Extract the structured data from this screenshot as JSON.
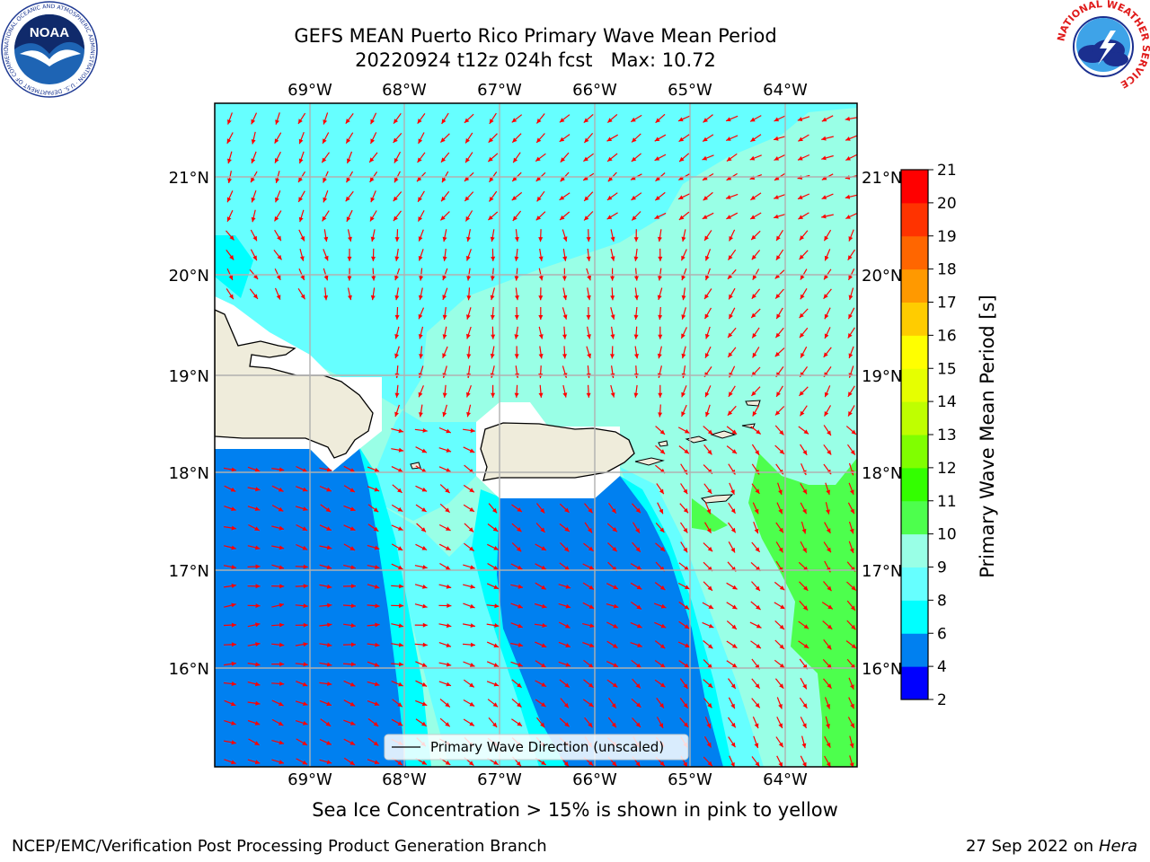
{
  "header": {
    "title_line1": "GEFS MEAN Puerto Rico Primary Wave Mean Period",
    "title_line2": "20220924 t12z 024h fcst   Max: 10.72"
  },
  "map": {
    "lon_labels": [
      "69°W",
      "68°W",
      "67°W",
      "66°W",
      "65°W",
      "64°W"
    ],
    "lat_labels": [
      "21°N",
      "20°N",
      "19°N",
      "18°N",
      "17°N",
      "16°N"
    ],
    "legend_label": "Primary Wave Direction (unscaled)",
    "colors": {
      "land": "#efecdb",
      "band_2_4": "#0000ff",
      "band_4_6": "#0080f0",
      "band_6_8": "#00ffff",
      "band_8_9": "#66ffff",
      "band_9_10": "#99ffe6",
      "band_10_11": "#4dff4d",
      "arrow": "#ff0000",
      "grid": "#b0b0b0"
    }
  },
  "colorbar": {
    "label": "Primary Wave Mean Period [s]",
    "ticks": [
      "2",
      "4",
      "6",
      "8",
      "9",
      "10",
      "11",
      "12",
      "13",
      "14",
      "15",
      "16",
      "17",
      "18",
      "19",
      "20",
      "21"
    ],
    "colors": [
      "#0000ff",
      "#0080f0",
      "#00ffff",
      "#66ffff",
      "#99ffe6",
      "#4dff4d",
      "#33ff00",
      "#80ff00",
      "#bfff00",
      "#e6ff00",
      "#ffff00",
      "#ffcc00",
      "#ff9900",
      "#ff6600",
      "#ff3300",
      "#ff0000"
    ]
  },
  "subtitle": "Sea Ice Concentration > 15% is shown in pink to yellow",
  "footer": {
    "left": "NCEP/EMC/Verification Post Processing Product Generation Branch",
    "date": "27 Sep 2022 on",
    "machine": "Hera"
  },
  "logos": {
    "noaa_text": "NOAA",
    "noaa_ring": "NATIONAL OCEANIC AND ATMOSPHERIC ADMINISTRATION · U.S. DEPARTMENT OF COMMERCE",
    "nws_ring": "NATIONAL WEATHER SERVICE"
  }
}
